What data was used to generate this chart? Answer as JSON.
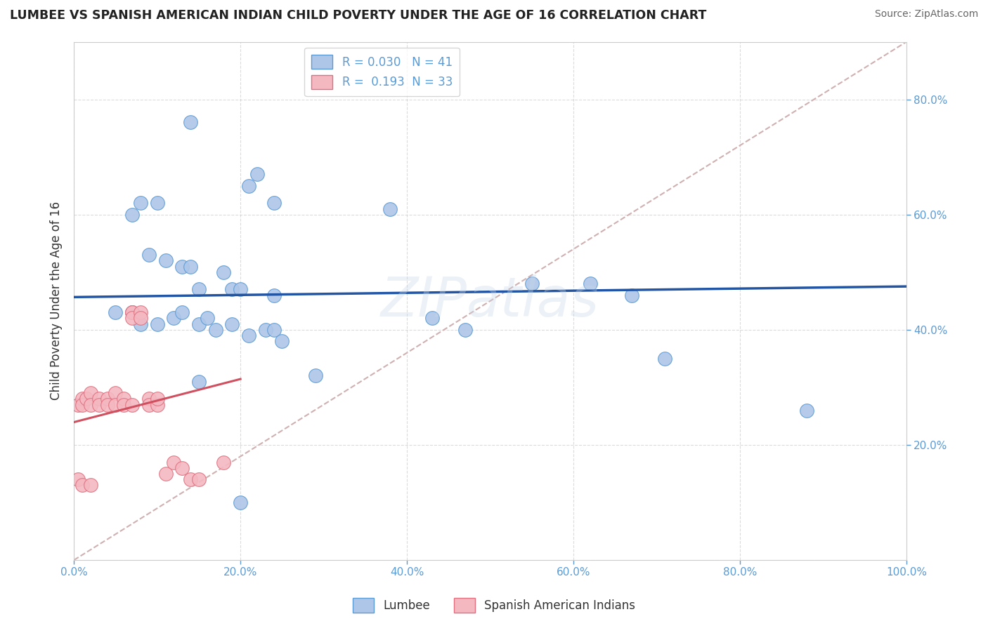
{
  "title": "LUMBEE VS SPANISH AMERICAN INDIAN CHILD POVERTY UNDER THE AGE OF 16 CORRELATION CHART",
  "source": "Source: ZipAtlas.com",
  "ylabel": "Child Poverty Under the Age of 16",
  "xlim": [
    0,
    1.0
  ],
  "ylim": [
    0,
    0.9
  ],
  "xtick_positions": [
    0.0,
    0.2,
    0.4,
    0.6,
    0.8,
    1.0
  ],
  "ytick_positions": [
    0.0,
    0.2,
    0.4,
    0.6,
    0.8
  ],
  "xtick_labels": [
    "0.0%",
    "20.0%",
    "40.0%",
    "60.0%",
    "80.0%",
    "100.0%"
  ],
  "ytick_labels_right": [
    "20.0%",
    "40.0%",
    "60.0%",
    "80.0%"
  ],
  "watermark": "ZIPatlas",
  "lumbee_dot_color": "#aec6e8",
  "lumbee_edge_color": "#5b9bd5",
  "spanish_dot_color": "#f4b8c1",
  "spanish_edge_color": "#e07080",
  "lumbee_line_color": "#2255a4",
  "spanish_line_color": "#d05060",
  "diag_line_color": "#d0b0b0",
  "background_color": "#ffffff",
  "grid_color": "#cccccc",
  "lumbee_R": 0.03,
  "lumbee_N": 41,
  "spanish_R": 0.193,
  "spanish_N": 33,
  "lumbee_x": [
    0.14,
    0.08,
    0.1,
    0.21,
    0.22,
    0.24,
    0.07,
    0.09,
    0.11,
    0.13,
    0.14,
    0.15,
    0.18,
    0.19,
    0.2,
    0.24,
    0.05,
    0.07,
    0.08,
    0.1,
    0.12,
    0.13,
    0.15,
    0.16,
    0.17,
    0.19,
    0.21,
    0.23,
    0.24,
    0.25,
    0.43,
    0.47,
    0.55,
    0.62,
    0.67,
    0.71,
    0.88,
    0.38,
    0.29,
    0.15,
    0.2
  ],
  "lumbee_y": [
    0.76,
    0.62,
    0.62,
    0.65,
    0.67,
    0.62,
    0.6,
    0.53,
    0.52,
    0.51,
    0.51,
    0.47,
    0.5,
    0.47,
    0.47,
    0.46,
    0.43,
    0.43,
    0.41,
    0.41,
    0.42,
    0.43,
    0.41,
    0.42,
    0.4,
    0.41,
    0.39,
    0.4,
    0.4,
    0.38,
    0.42,
    0.4,
    0.48,
    0.48,
    0.46,
    0.35,
    0.26,
    0.61,
    0.32,
    0.31,
    0.1
  ],
  "spanish_x": [
    0.005,
    0.01,
    0.01,
    0.015,
    0.02,
    0.02,
    0.03,
    0.03,
    0.04,
    0.04,
    0.05,
    0.05,
    0.06,
    0.06,
    0.07,
    0.07,
    0.07,
    0.07,
    0.08,
    0.08,
    0.09,
    0.09,
    0.1,
    0.1,
    0.11,
    0.12,
    0.13,
    0.14,
    0.15,
    0.18,
    0.005,
    0.01,
    0.02
  ],
  "spanish_y": [
    0.27,
    0.28,
    0.27,
    0.28,
    0.29,
    0.27,
    0.28,
    0.27,
    0.28,
    0.27,
    0.29,
    0.27,
    0.28,
    0.27,
    0.43,
    0.27,
    0.43,
    0.42,
    0.43,
    0.42,
    0.28,
    0.27,
    0.27,
    0.28,
    0.15,
    0.17,
    0.16,
    0.14,
    0.14,
    0.17,
    0.14,
    0.13,
    0.13
  ]
}
